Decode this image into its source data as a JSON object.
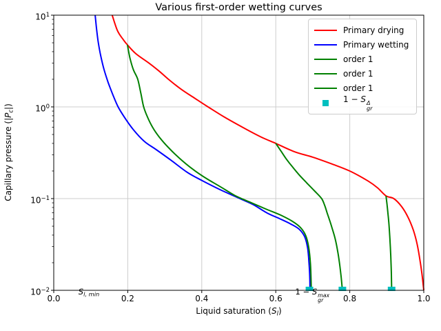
{
  "figure": {
    "bg": "#ffffff"
  },
  "chart_data": {
    "type": "line",
    "title": "Various first-order wetting curves",
    "xlabel_parts": [
      {
        "t": "Liquid saturation ("
      },
      {
        "t": "S",
        "i": true
      },
      {
        "t": "l",
        "i": true,
        "sub": true
      },
      {
        "t": ")"
      }
    ],
    "ylabel_parts": [
      {
        "t": "Capillary pressure (|"
      },
      {
        "t": "P",
        "i": true
      },
      {
        "t": "c",
        "i": true,
        "sub": true
      },
      {
        "t": "|)"
      }
    ],
    "x_axis": {
      "min": 0,
      "max": 1,
      "ticks": [
        {
          "v": 0,
          "label": "0.0"
        },
        {
          "v": 0.2,
          "label": "0.2"
        },
        {
          "v": 0.4,
          "label": "0.4"
        },
        {
          "v": 0.6,
          "label": "0.6"
        },
        {
          "v": 0.8,
          "label": "0.8"
        },
        {
          "v": 1,
          "label": "1.0"
        }
      ]
    },
    "y_axis": {
      "scale": "log",
      "min": 0.01,
      "max": 10,
      "ticks": [
        {
          "v": 10,
          "mantissa": "10",
          "exp": "1"
        },
        {
          "v": 1,
          "mantissa": "10",
          "exp": "0"
        },
        {
          "v": 0.1,
          "mantissa": "10",
          "exp": "−1"
        },
        {
          "v": 0.01,
          "mantissa": "10",
          "exp": "−2"
        }
      ]
    },
    "grid": {
      "show": true,
      "color": "#cccccc"
    },
    "series": [
      {
        "name": "Primary drying",
        "color": "#ff0000",
        "points": [
          [
            0.158,
            10
          ],
          [
            0.172,
            6.8
          ],
          [
            0.188,
            5.4
          ],
          [
            0.199,
            4.75
          ],
          [
            0.222,
            3.8
          ],
          [
            0.255,
            3.05
          ],
          [
            0.285,
            2.45
          ],
          [
            0.31,
            2.0
          ],
          [
            0.345,
            1.55
          ],
          [
            0.38,
            1.25
          ],
          [
            0.417,
            1.0
          ],
          [
            0.46,
            0.78
          ],
          [
            0.51,
            0.6
          ],
          [
            0.56,
            0.47
          ],
          [
            0.6,
            0.4
          ],
          [
            0.65,
            0.325
          ],
          [
            0.7,
            0.283
          ],
          [
            0.75,
            0.24
          ],
          [
            0.8,
            0.2
          ],
          [
            0.85,
            0.155
          ],
          [
            0.875,
            0.131
          ],
          [
            0.898,
            0.107
          ],
          [
            0.919,
            0.1
          ],
          [
            0.94,
            0.082
          ],
          [
            0.958,
            0.062
          ],
          [
            0.972,
            0.045
          ],
          [
            0.982,
            0.032
          ],
          [
            0.99,
            0.021
          ],
          [
            0.996,
            0.014
          ],
          [
            1.0,
            0.01
          ]
        ]
      },
      {
        "name": "Primary wetting",
        "color": "#0000ff",
        "points": [
          [
            0.112,
            10
          ],
          [
            0.116,
            6.9
          ],
          [
            0.1205,
            5.0
          ],
          [
            0.127,
            3.6
          ],
          [
            0.136,
            2.55
          ],
          [
            0.147,
            1.85
          ],
          [
            0.16,
            1.35
          ],
          [
            0.174,
            1.0
          ],
          [
            0.193,
            0.75
          ],
          [
            0.215,
            0.565
          ],
          [
            0.245,
            0.42
          ],
          [
            0.277,
            0.342
          ],
          [
            0.318,
            0.26
          ],
          [
            0.361,
            0.193
          ],
          [
            0.4,
            0.158
          ],
          [
            0.45,
            0.125
          ],
          [
            0.503,
            0.1
          ],
          [
            0.54,
            0.0855
          ],
          [
            0.577,
            0.0695
          ],
          [
            0.61,
            0.0605
          ],
          [
            0.64,
            0.053
          ],
          [
            0.663,
            0.0465
          ],
          [
            0.678,
            0.0385
          ],
          [
            0.686,
            0.029
          ],
          [
            0.69,
            0.0195
          ],
          [
            0.692,
            0.0135
          ],
          [
            0.6925,
            0.01
          ]
        ]
      },
      {
        "name": "order 1",
        "color": "#008000",
        "points": [
          [
            0.199,
            4.75
          ],
          [
            0.206,
            3.4
          ],
          [
            0.215,
            2.55
          ],
          [
            0.227,
            2.0
          ],
          [
            0.2355,
            1.4
          ],
          [
            0.243,
            1.0
          ],
          [
            0.253,
            0.78
          ],
          [
            0.267,
            0.6
          ],
          [
            0.285,
            0.47
          ],
          [
            0.31,
            0.36
          ],
          [
            0.34,
            0.275
          ],
          [
            0.375,
            0.21
          ],
          [
            0.41,
            0.168
          ],
          [
            0.45,
            0.135
          ],
          [
            0.49,
            0.108
          ],
          [
            0.53,
            0.0915
          ],
          [
            0.575,
            0.0765
          ],
          [
            0.615,
            0.0655
          ],
          [
            0.645,
            0.0565
          ],
          [
            0.6665,
            0.0485
          ],
          [
            0.681,
            0.0395
          ],
          [
            0.689,
            0.0295
          ],
          [
            0.694,
            0.0185
          ],
          [
            0.696,
            0.01
          ]
        ]
      },
      {
        "name": "order 1",
        "color": "#008000",
        "points": [
          [
            0.6,
            0.4
          ],
          [
            0.613,
            0.335
          ],
          [
            0.628,
            0.272
          ],
          [
            0.645,
            0.222
          ],
          [
            0.663,
            0.182
          ],
          [
            0.684,
            0.148
          ],
          [
            0.705,
            0.121
          ],
          [
            0.724,
            0.1
          ],
          [
            0.7325,
            0.0835
          ],
          [
            0.739,
            0.0695
          ],
          [
            0.7465,
            0.0565
          ],
          [
            0.752,
            0.048
          ],
          [
            0.7605,
            0.0365
          ],
          [
            0.7675,
            0.0265
          ],
          [
            0.7725,
            0.0195
          ],
          [
            0.7765,
            0.0142
          ],
          [
            0.779,
            0.0112
          ],
          [
            0.78,
            0.01
          ]
        ]
      },
      {
        "name": "order 1",
        "color": "#008000",
        "points": [
          [
            0.898,
            0.107
          ],
          [
            0.9005,
            0.0875
          ],
          [
            0.903,
            0.07
          ],
          [
            0.9055,
            0.0545
          ],
          [
            0.9075,
            0.0425
          ],
          [
            0.909,
            0.0335
          ],
          [
            0.9105,
            0.0255
          ],
          [
            0.9115,
            0.0195
          ],
          [
            0.9125,
            0.0148
          ],
          [
            0.913,
            0.0112
          ],
          [
            0.9132,
            0.01
          ]
        ]
      }
    ],
    "scatter": {
      "name": "1 − S gr Δ",
      "marker": "square",
      "color": "#00bfbf",
      "points": [
        [
          0.691,
          0.01
        ],
        [
          0.78,
          0.01
        ],
        [
          0.913,
          0.01
        ]
      ]
    },
    "legend": {
      "position": "upper right",
      "entries": [
        {
          "sample": "line",
          "color": "#ff0000",
          "label_parts": [
            {
              "t": "Primary drying"
            }
          ]
        },
        {
          "sample": "line",
          "color": "#0000ff",
          "label_parts": [
            {
              "t": "Primary wetting"
            }
          ]
        },
        {
          "sample": "line",
          "color": "#008000",
          "label_parts": [
            {
              "t": "order 1"
            }
          ]
        },
        {
          "sample": "line",
          "color": "#008000",
          "label_parts": [
            {
              "t": "order 1"
            }
          ]
        },
        {
          "sample": "line",
          "color": "#008000",
          "label_parts": [
            {
              "t": "order 1"
            }
          ]
        },
        {
          "sample": "marker",
          "color": "#00bfbf",
          "label_parts": [
            {
              "t": "1 − "
            },
            {
              "t": "S",
              "i": true
            },
            {
              "stack": {
                "sup": "Δ",
                "sub": "gr"
              }
            }
          ]
        }
      ]
    },
    "annotations": [
      {
        "x": 0.095,
        "parts": [
          {
            "t": "S",
            "i": true
          },
          {
            "t": "l, min",
            "i": true,
            "sub": true
          }
        ]
      },
      {
        "x": 0.699,
        "parts": [
          {
            "t": "1 − "
          },
          {
            "t": "S",
            "i": true
          },
          {
            "stack": {
              "sup": "max",
              "sub": "gr"
            }
          }
        ]
      }
    ]
  }
}
